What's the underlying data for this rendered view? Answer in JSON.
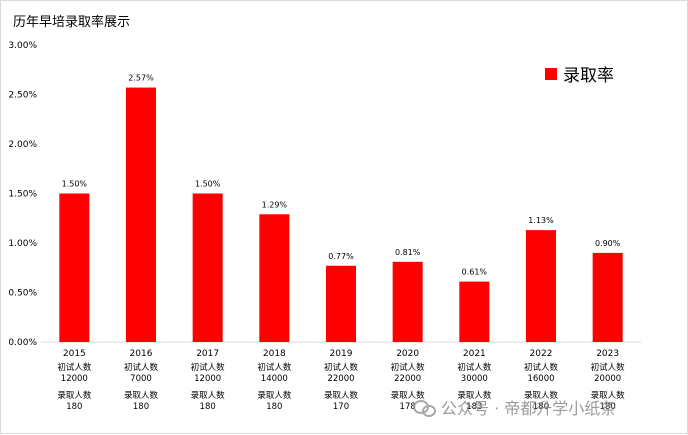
{
  "chart_data": {
    "type": "bar",
    "title": "历年早培录取率展示",
    "categories": [
      "2015",
      "2016",
      "2017",
      "2018",
      "2019",
      "2020",
      "2021",
      "2022",
      "2023"
    ],
    "series": [
      {
        "name": "录取率",
        "values": [
          1.5,
          2.57,
          1.5,
          1.29,
          0.77,
          0.81,
          0.61,
          1.13,
          0.9
        ]
      }
    ],
    "data_labels": [
      "1.50%",
      "2.57%",
      "1.50%",
      "1.29%",
      "0.77%",
      "0.81%",
      "0.61%",
      "1.13%",
      "0.90%"
    ],
    "y_ticks": [
      "0.00%",
      "0.50%",
      "1.00%",
      "1.50%",
      "2.00%",
      "2.50%",
      "3.00%"
    ],
    "ylim": [
      0,
      3.0
    ],
    "y_unit": "%",
    "grid": false,
    "legend_position": "top-right",
    "bar_color": "#ff0000",
    "category_notes": {
      "exam_label": "初试人数",
      "exam_counts": [
        "12000",
        "7000",
        "12000",
        "14000",
        "22000",
        "22000",
        "30000",
        "16000",
        "20000"
      ],
      "admit_label": "录取人数",
      "admit_counts": [
        "180",
        "180",
        "180",
        "180",
        "170",
        "178",
        "183",
        "180",
        "180"
      ]
    }
  },
  "watermark": {
    "text": "公众号 · 帝都升学小纸条",
    "icon": "wechat-icon"
  }
}
